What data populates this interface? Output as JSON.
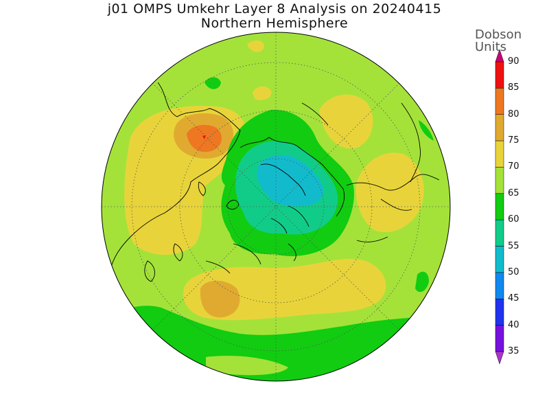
{
  "title": "j01 OMPS Umkehr Layer 8 Analysis on 20240415",
  "subtitle": "Northern Hemisphere",
  "colorbar": {
    "units_line1": "Dobson",
    "units_line2": "Units",
    "ticks": [
      "90",
      "85",
      "80",
      "75",
      "70",
      "65",
      "60",
      "55",
      "50",
      "45",
      "40",
      "35"
    ],
    "bands": [
      {
        "range": "above 90",
        "color": "#cc0077"
      },
      {
        "range": "85-90",
        "color": "#ee1111"
      },
      {
        "range": "80-85",
        "color": "#ee7722"
      },
      {
        "range": "75-80",
        "color": "#e0aa30"
      },
      {
        "range": "70-75",
        "color": "#e8d43a"
      },
      {
        "range": "65-70",
        "color": "#a4e23a"
      },
      {
        "range": "60-65",
        "color": "#11cc11"
      },
      {
        "range": "55-60",
        "color": "#11cc88"
      },
      {
        "range": "50-55",
        "color": "#11bbcc"
      },
      {
        "range": "45-50",
        "color": "#1188ee"
      },
      {
        "range": "40-45",
        "color": "#2233ee"
      },
      {
        "range": "35-40",
        "color": "#7711dd"
      },
      {
        "range": "below 35",
        "color": "#aa33cc"
      }
    ]
  }
}
